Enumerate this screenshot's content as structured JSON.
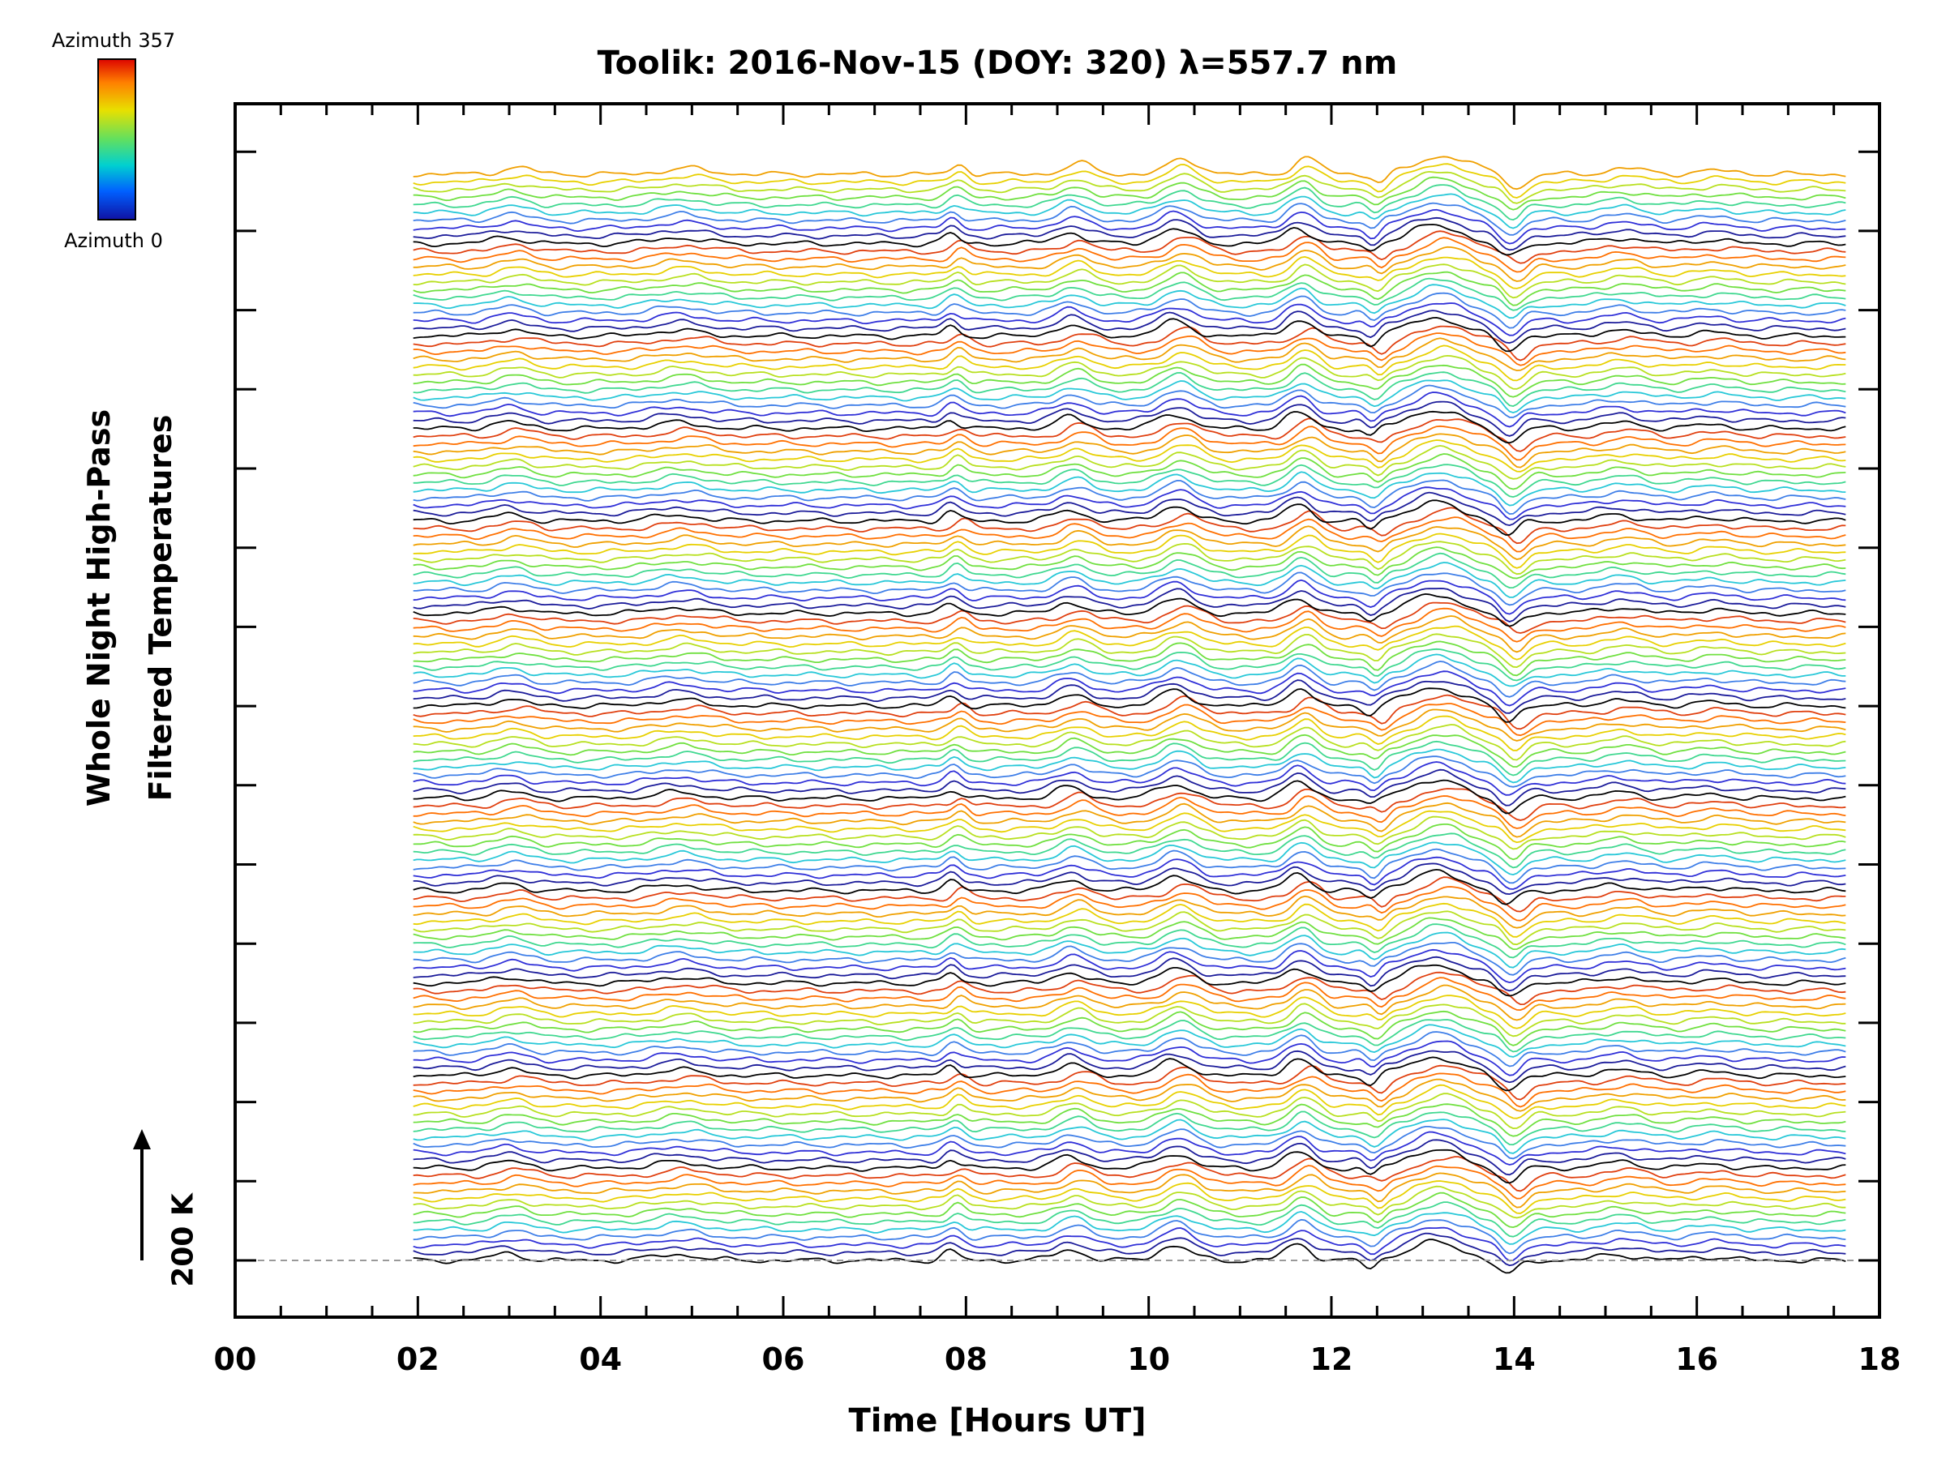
{
  "chart_data": {
    "type": "line",
    "title": "Toolik: 2016-Nov-15 (DOY: 320) λ=557.7 nm",
    "xlabel": "Time [Hours UT]",
    "ylabel_lines": [
      "Whole Night High-Pass",
      "Filtered Temperatures"
    ],
    "xlim": [
      0,
      18
    ],
    "xticks": [
      "00",
      "02",
      "04",
      "06",
      "08",
      "10",
      "12",
      "14",
      "16",
      "18"
    ],
    "x_start": 1.95,
    "x_end": 17.65,
    "scale_bar": "200 K",
    "colorbar": {
      "top_label": "Azimuth 357",
      "bottom_label": "Azimuth 0",
      "colors": [
        "#dc0000",
        "#ff8000",
        "#e8e000",
        "#60e060",
        "#00d0d0",
        "#0060ff",
        "#1010a0"
      ]
    },
    "baseline": "dashed",
    "num_series": 142,
    "azimuth_cycle": [
      {
        "azimuth": 0,
        "color": "#000000"
      },
      {
        "azimuth": 32,
        "color": "#1c1c9a"
      },
      {
        "azimuth": 64,
        "color": "#3030d8"
      },
      {
        "azimuth": 96,
        "color": "#3f7fe8"
      },
      {
        "azimuth": 128,
        "color": "#28c8d8"
      },
      {
        "azimuth": 160,
        "color": "#40d890"
      },
      {
        "azimuth": 192,
        "color": "#70e040"
      },
      {
        "azimuth": 224,
        "color": "#b8e020"
      },
      {
        "azimuth": 256,
        "color": "#e8d000"
      },
      {
        "azimuth": 288,
        "color": "#f0a000"
      },
      {
        "azimuth": 320,
        "color": "#ff7000"
      },
      {
        "azimuth": 357,
        "color": "#e04010"
      }
    ],
    "wave_features_hours": [
      {
        "t": 3.05,
        "amp": 0.9,
        "width": 0.25
      },
      {
        "t": 4.9,
        "amp": 0.8,
        "width": 0.35
      },
      {
        "t": 7.9,
        "amp": 1.3,
        "width": 0.12
      },
      {
        "t": 9.2,
        "amp": 1.5,
        "width": 0.22
      },
      {
        "t": 10.35,
        "amp": 2.0,
        "width": 0.25
      },
      {
        "t": 11.7,
        "amp": 2.2,
        "width": 0.2
      },
      {
        "t": 12.5,
        "amp": -1.2,
        "width": 0.1
      },
      {
        "t": 13.2,
        "amp": 2.5,
        "width": 0.4
      },
      {
        "t": 14.0,
        "amp": -2.0,
        "width": 0.15
      },
      {
        "t": 15.2,
        "amp": 0.8,
        "width": 0.3
      },
      {
        "t": 16.2,
        "amp": 0.5,
        "width": 0.3
      }
    ]
  }
}
